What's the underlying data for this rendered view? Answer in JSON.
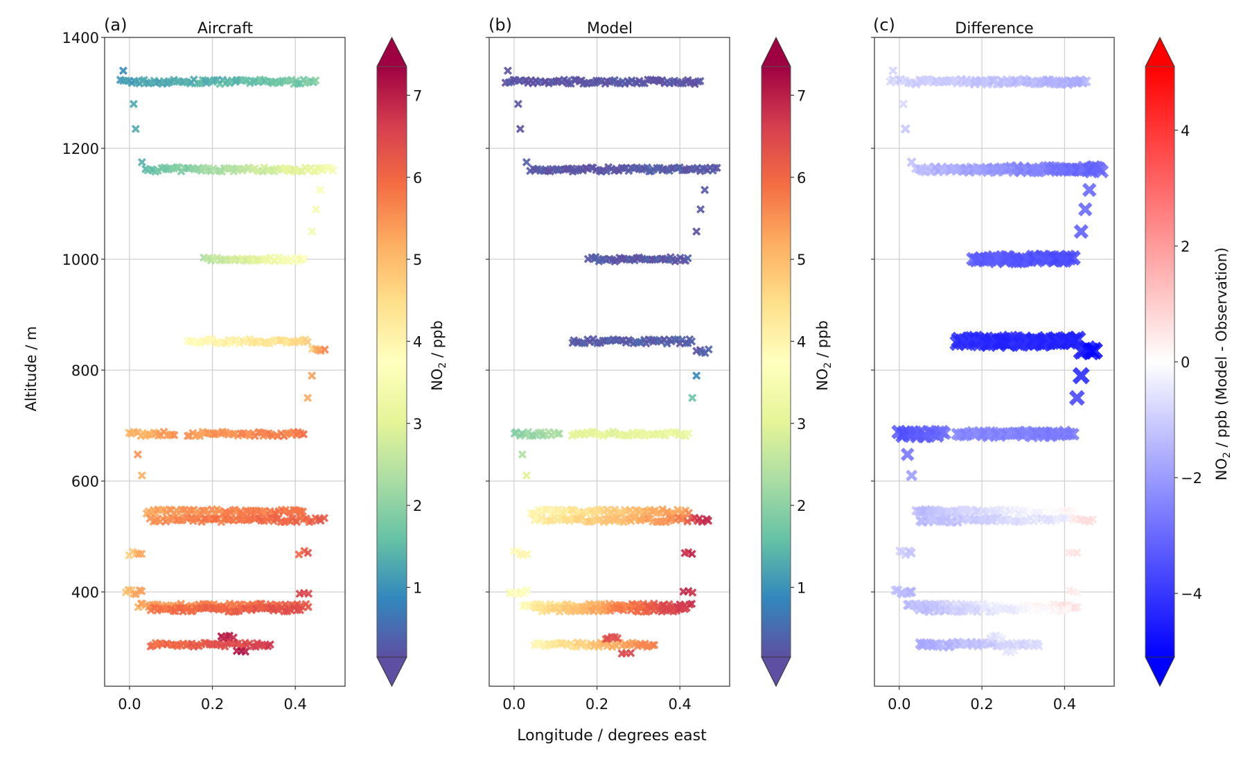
{
  "chart_data": [
    {
      "type": "scatter",
      "panel_label": "(a)",
      "title": "Aircraft",
      "xlabel": "",
      "ylabel": "Altitude / m",
      "xlim": [
        -0.06,
        0.52
      ],
      "ylim": [
        230,
        1400
      ],
      "xticks": [
        "0.0",
        "0.2",
        "0.4"
      ],
      "xtick_values": [
        0.0,
        0.2,
        0.4
      ],
      "yticks": [
        "400",
        "600",
        "800",
        "1000",
        "1200",
        "1400"
      ],
      "ytick_values": [
        400,
        600,
        800,
        1000,
        1200,
        1400
      ],
      "grid": true,
      "marker": "X",
      "colormap": "Spectral_r",
      "colorbar": {
        "label": "NO2 / ppb",
        "ticks": [
          "1",
          "2",
          "3",
          "4",
          "5",
          "6",
          "7"
        ],
        "tick_values": [
          1,
          2,
          3,
          4,
          5,
          6,
          7
        ],
        "range": [
          0.15,
          7.35
        ],
        "extend": "both"
      },
      "legs": [
        {
          "alt": 1320,
          "lon_start": -0.02,
          "lon_end": 0.45,
          "no2_start": 1.1,
          "no2_end": 1.8
        },
        {
          "alt": 1340,
          "lon_start": -0.015,
          "lon_end": -0.015,
          "no2_start": 1.0,
          "no2_end": 1.0
        },
        {
          "alt": 1280,
          "lon_start": 0.01,
          "lon_end": 0.01,
          "no2_start": 1.1,
          "no2_end": 1.1
        },
        {
          "alt": 1235,
          "lon_start": 0.015,
          "lon_end": 0.015,
          "no2_start": 1.3,
          "no2_end": 1.3
        },
        {
          "alt": 1175,
          "lon_start": 0.03,
          "lon_end": 0.03,
          "no2_start": 1.5,
          "no2_end": 1.5
        },
        {
          "alt": 1162,
          "lon_start": 0.04,
          "lon_end": 0.49,
          "no2_start": 1.5,
          "no2_end": 3.4
        },
        {
          "alt": 1000,
          "lon_start": 0.18,
          "lon_end": 0.42,
          "no2_start": 2.4,
          "no2_end": 3.6
        },
        {
          "alt": 1050,
          "lon_start": 0.44,
          "lon_end": 0.44,
          "no2_start": 3.5,
          "no2_end": 3.5
        },
        {
          "alt": 1090,
          "lon_start": 0.45,
          "lon_end": 0.45,
          "no2_start": 3.4,
          "no2_end": 3.4
        },
        {
          "alt": 1125,
          "lon_start": 0.46,
          "lon_end": 0.46,
          "no2_start": 3.4,
          "no2_end": 3.4
        },
        {
          "alt": 852,
          "lon_start": 0.14,
          "lon_end": 0.43,
          "no2_start": 3.8,
          "no2_end": 4.6
        },
        {
          "alt": 835,
          "lon_start": 0.44,
          "lon_end": 0.47,
          "no2_start": 4.8,
          "no2_end": 5.6
        },
        {
          "alt": 790,
          "lon_start": 0.44,
          "lon_end": 0.44,
          "no2_start": 5.3,
          "no2_end": 5.3
        },
        {
          "alt": 750,
          "lon_start": 0.43,
          "lon_end": 0.43,
          "no2_start": 5.4,
          "no2_end": 5.4
        },
        {
          "alt": 685,
          "lon_start": 0.0,
          "lon_end": 0.11,
          "no2_start": 5.0,
          "no2_end": 5.5
        },
        {
          "alt": 685,
          "lon_start": 0.14,
          "lon_end": 0.42,
          "no2_start": 5.4,
          "no2_end": 5.8
        },
        {
          "alt": 648,
          "lon_start": 0.02,
          "lon_end": 0.02,
          "no2_start": 5.4,
          "no2_end": 5.4
        },
        {
          "alt": 610,
          "lon_start": 0.03,
          "lon_end": 0.03,
          "no2_start": 5.0,
          "no2_end": 5.0
        },
        {
          "alt": 545,
          "lon_start": 0.04,
          "lon_end": 0.42,
          "no2_start": 5.3,
          "no2_end": 5.9
        },
        {
          "alt": 530,
          "lon_start": 0.05,
          "lon_end": 0.41,
          "no2_start": 5.5,
          "no2_end": 6.1
        },
        {
          "alt": 530,
          "lon_start": 0.42,
          "lon_end": 0.47,
          "no2_start": 5.9,
          "no2_end": 6.3
        },
        {
          "alt": 470,
          "lon_start": 0.0,
          "lon_end": 0.03,
          "no2_start": 4.8,
          "no2_end": 5.3
        },
        {
          "alt": 470,
          "lon_start": 0.41,
          "lon_end": 0.43,
          "no2_start": 6.1,
          "no2_end": 6.3
        },
        {
          "alt": 400,
          "lon_start": 0.41,
          "lon_end": 0.43,
          "no2_start": 6.4,
          "no2_end": 6.4
        },
        {
          "alt": 400,
          "lon_start": -0.01,
          "lon_end": 0.03,
          "no2_start": 4.9,
          "no2_end": 5.3
        },
        {
          "alt": 375,
          "lon_start": 0.02,
          "lon_end": 0.43,
          "no2_start": 5.3,
          "no2_end": 6.2
        },
        {
          "alt": 368,
          "lon_start": 0.05,
          "lon_end": 0.41,
          "no2_start": 5.8,
          "no2_end": 6.4
        },
        {
          "alt": 305,
          "lon_start": 0.05,
          "lon_end": 0.34,
          "no2_start": 5.9,
          "no2_end": 6.6
        },
        {
          "alt": 318,
          "lon_start": 0.22,
          "lon_end": 0.25,
          "no2_start": 7.0,
          "no2_end": 7.0
        },
        {
          "alt": 292,
          "lon_start": 0.26,
          "lon_end": 0.28,
          "no2_start": 7.1,
          "no2_end": 7.1
        }
      ]
    },
    {
      "type": "scatter",
      "panel_label": "(b)",
      "title": "Model",
      "xlabel": "Longitude / degrees east",
      "ylabel": "",
      "xlim": [
        -0.06,
        0.52
      ],
      "ylim": [
        230,
        1400
      ],
      "xticks": [
        "0.0",
        "0.2",
        "0.4"
      ],
      "xtick_values": [
        0.0,
        0.2,
        0.4
      ],
      "grid": true,
      "marker": "X",
      "colormap": "Spectral_r",
      "colorbar": {
        "label": "NO2 / ppb",
        "ticks": [
          "1",
          "2",
          "3",
          "4",
          "5",
          "6",
          "7"
        ],
        "tick_values": [
          1,
          2,
          3,
          4,
          5,
          6,
          7
        ],
        "range": [
          0.15,
          7.35
        ],
        "extend": "both"
      },
      "legs": [
        {
          "alt": 1320,
          "lon_start": -0.02,
          "lon_end": 0.45,
          "no2_start": 0.2,
          "no2_end": 0.2
        },
        {
          "alt": 1340,
          "lon_start": -0.015,
          "lon_end": -0.015,
          "no2_start": 0.2,
          "no2_end": 0.2
        },
        {
          "alt": 1280,
          "lon_start": 0.01,
          "lon_end": 0.01,
          "no2_start": 0.2,
          "no2_end": 0.2
        },
        {
          "alt": 1235,
          "lon_start": 0.015,
          "lon_end": 0.015,
          "no2_start": 0.2,
          "no2_end": 0.2
        },
        {
          "alt": 1175,
          "lon_start": 0.03,
          "lon_end": 0.03,
          "no2_start": 0.2,
          "no2_end": 0.2
        },
        {
          "alt": 1162,
          "lon_start": 0.04,
          "lon_end": 0.49,
          "no2_start": 0.2,
          "no2_end": 0.25
        },
        {
          "alt": 1000,
          "lon_start": 0.18,
          "lon_end": 0.42,
          "no2_start": 0.25,
          "no2_end": 0.25
        },
        {
          "alt": 1050,
          "lon_start": 0.44,
          "lon_end": 0.44,
          "no2_start": 0.25,
          "no2_end": 0.25
        },
        {
          "alt": 1090,
          "lon_start": 0.45,
          "lon_end": 0.45,
          "no2_start": 0.25,
          "no2_end": 0.25
        },
        {
          "alt": 1125,
          "lon_start": 0.46,
          "lon_end": 0.46,
          "no2_start": 0.25,
          "no2_end": 0.25
        },
        {
          "alt": 852,
          "lon_start": 0.14,
          "lon_end": 0.43,
          "no2_start": 0.3,
          "no2_end": 0.3
        },
        {
          "alt": 835,
          "lon_start": 0.44,
          "lon_end": 0.47,
          "no2_start": 0.35,
          "no2_end": 0.35
        },
        {
          "alt": 790,
          "lon_start": 0.44,
          "lon_end": 0.44,
          "no2_start": 0.8,
          "no2_end": 0.8
        },
        {
          "alt": 750,
          "lon_start": 0.43,
          "lon_end": 0.43,
          "no2_start": 1.7,
          "no2_end": 1.7
        },
        {
          "alt": 685,
          "lon_start": 0.0,
          "lon_end": 0.11,
          "no2_start": 1.9,
          "no2_end": 2.4
        },
        {
          "alt": 685,
          "lon_start": 0.14,
          "lon_end": 0.42,
          "no2_start": 3.0,
          "no2_end": 3.2
        },
        {
          "alt": 648,
          "lon_start": 0.02,
          "lon_end": 0.02,
          "no2_start": 2.5,
          "no2_end": 2.5
        },
        {
          "alt": 610,
          "lon_start": 0.03,
          "lon_end": 0.03,
          "no2_start": 3.1,
          "no2_end": 3.1
        },
        {
          "alt": 545,
          "lon_start": 0.04,
          "lon_end": 0.42,
          "no2_start": 3.9,
          "no2_end": 5.5
        },
        {
          "alt": 530,
          "lon_start": 0.05,
          "lon_end": 0.41,
          "no2_start": 4.1,
          "no2_end": 5.7
        },
        {
          "alt": 530,
          "lon_start": 0.42,
          "lon_end": 0.47,
          "no2_start": 6.3,
          "no2_end": 6.9
        },
        {
          "alt": 470,
          "lon_start": 0.0,
          "lon_end": 0.03,
          "no2_start": 3.8,
          "no2_end": 3.9
        },
        {
          "alt": 470,
          "lon_start": 0.41,
          "lon_end": 0.43,
          "no2_start": 6.7,
          "no2_end": 6.8
        },
        {
          "alt": 400,
          "lon_start": 0.41,
          "lon_end": 0.43,
          "no2_start": 6.9,
          "no2_end": 6.9
        },
        {
          "alt": 400,
          "lon_start": -0.01,
          "lon_end": 0.03,
          "no2_start": 3.6,
          "no2_end": 3.8
        },
        {
          "alt": 375,
          "lon_start": 0.02,
          "lon_end": 0.43,
          "no2_start": 3.8,
          "no2_end": 6.9
        },
        {
          "alt": 368,
          "lon_start": 0.05,
          "lon_end": 0.41,
          "no2_start": 4.3,
          "no2_end": 6.7
        },
        {
          "alt": 305,
          "lon_start": 0.05,
          "lon_end": 0.34,
          "no2_start": 4.0,
          "no2_end": 5.8
        },
        {
          "alt": 318,
          "lon_start": 0.22,
          "lon_end": 0.25,
          "no2_start": 6.4,
          "no2_end": 6.4
        },
        {
          "alt": 292,
          "lon_start": 0.26,
          "lon_end": 0.28,
          "no2_start": 6.6,
          "no2_end": 6.6
        }
      ]
    },
    {
      "type": "scatter",
      "panel_label": "(c)",
      "title": "Difference",
      "xlabel": "",
      "ylabel": "",
      "xlim": [
        -0.06,
        0.52
      ],
      "ylim": [
        230,
        1400
      ],
      "xticks": [
        "0.0",
        "0.2",
        "0.4"
      ],
      "xtick_values": [
        0.0,
        0.2,
        0.4
      ],
      "grid": true,
      "marker": "X (size scaled by |difference|)",
      "colormap": "bwr",
      "colorbar": {
        "label": "NO2 / ppb (Model - Observation)",
        "ticks": [
          "−4",
          "−2",
          "0",
          "2",
          "4"
        ],
        "tick_values": [
          -4,
          -2,
          0,
          2,
          4
        ],
        "range": [
          -5.1,
          5.1
        ],
        "extend": "both"
      },
      "legs": [
        {
          "alt": 1320,
          "lon_start": -0.02,
          "lon_end": 0.45,
          "diff_start": -0.9,
          "diff_end": -1.6
        },
        {
          "alt": 1340,
          "lon_start": -0.015,
          "lon_end": -0.015,
          "diff_start": -0.8,
          "diff_end": -0.8
        },
        {
          "alt": 1280,
          "lon_start": 0.01,
          "lon_end": 0.01,
          "diff_start": -0.9,
          "diff_end": -0.9
        },
        {
          "alt": 1235,
          "lon_start": 0.015,
          "lon_end": 0.015,
          "diff_start": -1.1,
          "diff_end": -1.1
        },
        {
          "alt": 1175,
          "lon_start": 0.03,
          "lon_end": 0.03,
          "diff_start": -1.3,
          "diff_end": -1.3
        },
        {
          "alt": 1162,
          "lon_start": 0.04,
          "lon_end": 0.49,
          "diff_start": -1.3,
          "diff_end": -3.2
        },
        {
          "alt": 1000,
          "lon_start": 0.18,
          "lon_end": 0.42,
          "diff_start": -3.2,
          "diff_end": -3.6
        },
        {
          "alt": 1050,
          "lon_start": 0.44,
          "lon_end": 0.44,
          "diff_start": -3.3,
          "diff_end": -3.3
        },
        {
          "alt": 1090,
          "lon_start": 0.45,
          "lon_end": 0.45,
          "diff_start": -3.2,
          "diff_end": -3.2
        },
        {
          "alt": 1125,
          "lon_start": 0.46,
          "lon_end": 0.46,
          "diff_start": -3.2,
          "diff_end": -3.2
        },
        {
          "alt": 852,
          "lon_start": 0.14,
          "lon_end": 0.43,
          "diff_start": -4.2,
          "diff_end": -4.4
        },
        {
          "alt": 835,
          "lon_start": 0.44,
          "lon_end": 0.47,
          "diff_start": -4.4,
          "diff_end": -4.8
        },
        {
          "alt": 790,
          "lon_start": 0.44,
          "lon_end": 0.44,
          "diff_start": -4.5,
          "diff_end": -4.5
        },
        {
          "alt": 750,
          "lon_start": 0.43,
          "lon_end": 0.43,
          "diff_start": -3.7,
          "diff_end": -3.7
        },
        {
          "alt": 685,
          "lon_start": 0.0,
          "lon_end": 0.11,
          "diff_start": -3.5,
          "diff_end": -3.0
        },
        {
          "alt": 685,
          "lon_start": 0.14,
          "lon_end": 0.42,
          "diff_start": -2.4,
          "diff_end": -2.6
        },
        {
          "alt": 648,
          "lon_start": 0.02,
          "lon_end": 0.02,
          "diff_start": -2.9,
          "diff_end": -2.9
        },
        {
          "alt": 610,
          "lon_start": 0.03,
          "lon_end": 0.03,
          "diff_start": -1.9,
          "diff_end": -1.9
        },
        {
          "alt": 545,
          "lon_start": 0.04,
          "lon_end": 0.42,
          "diff_start": -1.4,
          "diff_end": 0.2
        },
        {
          "alt": 530,
          "lon_start": 0.05,
          "lon_end": 0.41,
          "diff_start": -1.4,
          "diff_end": -0.4
        },
        {
          "alt": 530,
          "lon_start": 0.42,
          "lon_end": 0.47,
          "diff_start": 0.4,
          "diff_end": 0.8
        },
        {
          "alt": 470,
          "lon_start": 0.0,
          "lon_end": 0.03,
          "diff_start": -1.0,
          "diff_end": -1.4
        },
        {
          "alt": 470,
          "lon_start": 0.41,
          "lon_end": 0.43,
          "diff_start": 0.5,
          "diff_end": 0.5
        },
        {
          "alt": 400,
          "lon_start": 0.41,
          "lon_end": 0.43,
          "diff_start": 0.4,
          "diff_end": 0.4
        },
        {
          "alt": 400,
          "lon_start": -0.01,
          "lon_end": 0.03,
          "diff_start": -1.2,
          "diff_end": -1.5
        },
        {
          "alt": 375,
          "lon_start": 0.02,
          "lon_end": 0.43,
          "diff_start": -1.4,
          "diff_end": 0.7
        },
        {
          "alt": 368,
          "lon_start": 0.05,
          "lon_end": 0.41,
          "diff_start": -1.4,
          "diff_end": 0.3
        },
        {
          "alt": 305,
          "lon_start": 0.05,
          "lon_end": 0.34,
          "diff_start": -1.7,
          "diff_end": -0.7
        },
        {
          "alt": 318,
          "lon_start": 0.22,
          "lon_end": 0.25,
          "diff_start": -0.6,
          "diff_end": -0.6
        },
        {
          "alt": 292,
          "lon_start": 0.26,
          "lon_end": 0.28,
          "diff_start": -0.5,
          "diff_end": -0.5
        }
      ]
    }
  ],
  "shared": {
    "ylabel": "Altitude / m",
    "xlabel": "Longitude / degrees east"
  },
  "colors": {
    "spectral_r": [
      "#5e4fa2",
      "#3288bd",
      "#66c2a5",
      "#abdda4",
      "#e6f598",
      "#ffffbf",
      "#fee08b",
      "#fdae61",
      "#f46d43",
      "#d53e4f",
      "#9e0142"
    ],
    "bwr": [
      "#0000ff",
      "#ffffff",
      "#ff0000"
    ],
    "grid": "#d0d0d0",
    "axis": "#555555"
  }
}
